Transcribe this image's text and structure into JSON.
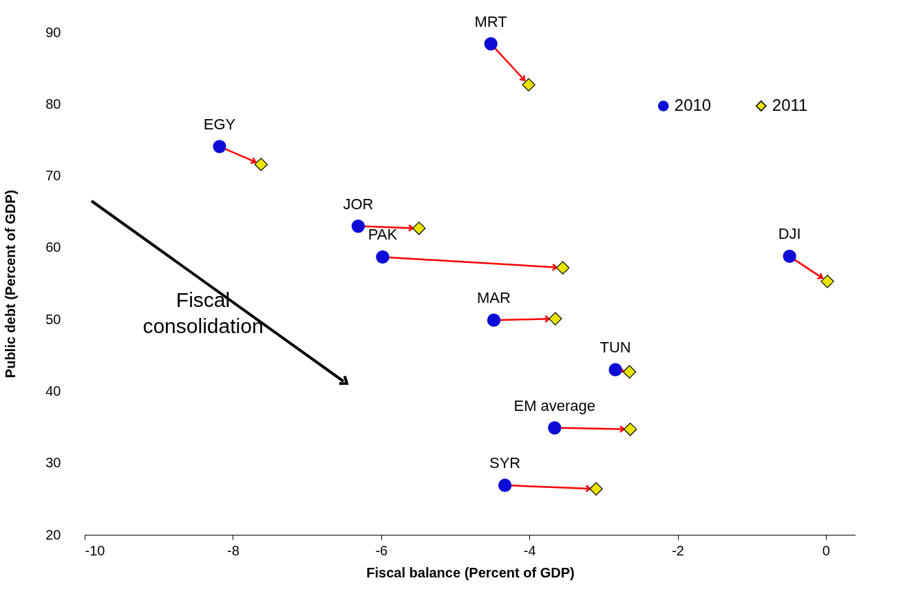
{
  "chart_data": {
    "type": "scatter",
    "xlabel": "Fiscal balance (Percent of GDP)",
    "ylabel": "Public debt (Percent of GDP)",
    "xlim": [
      -10,
      0.4
    ],
    "xticks": [
      {
        "value": -10,
        "label": "-10"
      },
      {
        "value": -8,
        "label": "-8"
      },
      {
        "value": -6,
        "label": "-6"
      },
      {
        "value": -4,
        "label": "-4"
      },
      {
        "value": -2,
        "label": "-2"
      },
      0
    ],
    "ylim": [
      20,
      90
    ],
    "yticks": [
      20,
      30,
      40,
      50,
      60,
      70,
      80,
      90
    ],
    "grid": false,
    "legend": "top right",
    "series": [
      {
        "name": "2010",
        "color": "#0c0cd6",
        "marker": "circle",
        "x": [
          -4.52,
          -8.18,
          -6.31,
          -5.98,
          -4.48,
          -2.84,
          -3.66,
          -4.33,
          -0.49
        ],
        "values": [
          88.4,
          74.1,
          63.0,
          58.7,
          49.9,
          43.0,
          34.9,
          26.9,
          58.8
        ]
      },
      {
        "name": "2011",
        "color": "#e8e400",
        "marker": "diamond",
        "x": [
          -4.01,
          -7.62,
          -5.49,
          -3.55,
          -3.65,
          -2.65,
          -2.64,
          -3.1,
          0.02
        ],
        "values": [
          82.7,
          71.6,
          62.7,
          57.2,
          50.1,
          42.7,
          34.7,
          26.4,
          55.3
        ]
      }
    ],
    "annotations": [
      {
        "text": "MRT",
        "x": -4.52,
        "y": 88.4
      },
      {
        "text": "EGY",
        "x": -8.18,
        "y": 74.1
      },
      {
        "text": "JOR",
        "x": -6.31,
        "y": 63.0
      },
      {
        "text": "PAK",
        "x": -5.98,
        "y": 58.7
      },
      {
        "text": "MAR",
        "x": -4.48,
        "y": 49.9
      },
      {
        "text": "TUN",
        "x": -2.84,
        "y": 43.0
      },
      {
        "text": "EM average",
        "x": -3.66,
        "y": 34.9
      },
      {
        "text": "SYR",
        "x": -4.33,
        "y": 26.9
      },
      {
        "text": "DJI",
        "x": -0.49,
        "y": 58.8
      },
      "Fiscal consolidation"
    ]
  }
}
